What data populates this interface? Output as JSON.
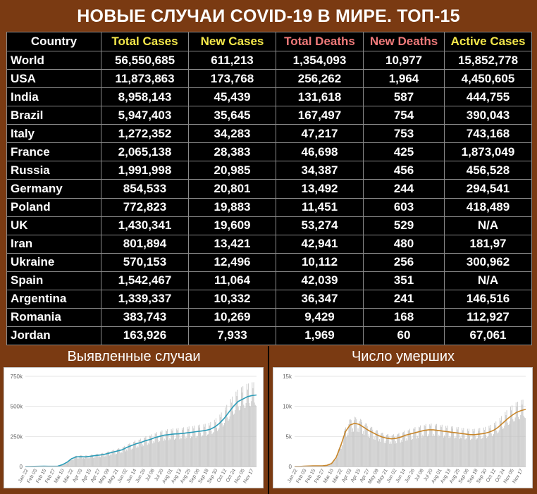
{
  "title": "НОВЫЕ СЛУЧАИ COVID-19 В МИРЕ. ТОП-15",
  "table": {
    "headers": [
      "Country",
      "Total Cases",
      "New Cases",
      "Total Deaths",
      "New Deaths",
      "Active Cases"
    ],
    "header_colors": [
      "#ffffff",
      "#f5e84a",
      "#f5e84a",
      "#f07a7a",
      "#f07a7a",
      "#f5e84a"
    ],
    "rows": [
      [
        "World",
        "56,550,685",
        "611,213",
        "1,354,093",
        "10,977",
        "15,852,778"
      ],
      [
        "USA",
        "11,873,863",
        "173,768",
        "256,262",
        "1,964",
        "4,450,605"
      ],
      [
        "India",
        "8,958,143",
        "45,439",
        "131,618",
        "587",
        "444,755"
      ],
      [
        "Brazil",
        "5,947,403",
        "35,645",
        "167,497",
        "754",
        "390,043"
      ],
      [
        "Italy",
        "1,272,352",
        "34,283",
        "47,217",
        "753",
        "743,168"
      ],
      [
        "France",
        "2,065,138",
        "28,383",
        "46,698",
        "425",
        "1,873,049"
      ],
      [
        "Russia",
        "1,991,998",
        "20,985",
        "34,387",
        "456",
        "456,528"
      ],
      [
        "Germany",
        "854,533",
        "20,801",
        "13,492",
        "244",
        "294,541"
      ],
      [
        "Poland",
        "772,823",
        "19,883",
        "11,451",
        "603",
        "418,489"
      ],
      [
        "UK",
        "1,430,341",
        "19,609",
        "53,274",
        "529",
        "N/A"
      ],
      [
        "Iran",
        "801,894",
        "13,421",
        "42,941",
        "480",
        "181,97"
      ],
      [
        "Ukraine",
        "570,153",
        "12,496",
        "10,112",
        "256",
        "300,962"
      ],
      [
        "Spain",
        "1,542,467",
        "11,064",
        "42,039",
        "351",
        "N/A"
      ],
      [
        "Argentina",
        "1,339,337",
        "10,332",
        "36,347",
        "241",
        "146,516"
      ],
      [
        "Romania",
        "383,743",
        "10,269",
        "9,429",
        "168",
        "112,927"
      ],
      [
        "Jordan",
        "163,926",
        "7,933",
        "1,969",
        "60",
        "67,061"
      ]
    ]
  },
  "sections": {
    "cases_label": "Выявленные случаи",
    "deaths_label": "Число умерших"
  },
  "chart_data": [
    {
      "type": "bar",
      "title": "",
      "xlabel": "",
      "ylabel": "",
      "ylim": [
        0,
        750000
      ],
      "yticks": [
        "0",
        "250k",
        "500k",
        "750k"
      ],
      "ytick_values": [
        0,
        250000,
        500000,
        750000
      ],
      "x_tick_labels": [
        "Jan 22",
        "Feb 03",
        "Feb 15",
        "Feb 27",
        "Mar 10",
        "Mar 22",
        "Apr 03",
        "Apr 15",
        "Apr 27",
        "May 09",
        "May 21",
        "Jun 02",
        "Jun 14",
        "Jun 26",
        "Jul 08",
        "Jul 20",
        "Aug 01",
        "Aug 13",
        "Aug 25",
        "Sep 06",
        "Sep 18",
        "Sep 30",
        "Oct 12",
        "Oct 24",
        "Nov 05",
        "Nov 17"
      ],
      "bar_color": "#c4c4c4",
      "line_color": "#2b9cb8",
      "series": [
        {
          "values": [
            0,
            0,
            1000,
            2000,
            3000,
            2000,
            2000,
            3000,
            15000,
            35000,
            65000,
            80000,
            82000,
            80000,
            85000,
            90000,
            95000,
            100000,
            110000,
            120000,
            130000,
            140000,
            160000,
            175000,
            190000,
            200000,
            215000,
            225000,
            240000,
            250000,
            260000,
            265000,
            270000,
            272000,
            275000,
            280000,
            285000,
            290000,
            295000,
            300000,
            310000,
            330000,
            360000,
            400000,
            450000,
            500000,
            540000,
            560000,
            580000,
            590000,
            595000
          ]
        }
      ]
    },
    {
      "type": "bar",
      "title": "",
      "xlabel": "",
      "ylabel": "",
      "ylim": [
        0,
        15000
      ],
      "yticks": [
        "0",
        "5k",
        "10k",
        "15k"
      ],
      "ytick_values": [
        0,
        5000,
        10000,
        15000
      ],
      "x_tick_labels": [
        "Jan 22",
        "Feb 03",
        "Feb 15",
        "Feb 27",
        "Mar 10",
        "Mar 22",
        "Apr 03",
        "Apr 15",
        "Apr 27",
        "May 09",
        "May 21",
        "Jun 02",
        "Jun 14",
        "Jun 26",
        "Jul 08",
        "Jul 20",
        "Aug 01",
        "Aug 13",
        "Aug 25",
        "Sep 06",
        "Sep 18",
        "Sep 30",
        "Oct 12",
        "Oct 24",
        "Nov 05",
        "Nov 17"
      ],
      "bar_color": "#c4c4c4",
      "line_color": "#c8862a",
      "series": [
        {
          "values": [
            0,
            0,
            50,
            80,
            100,
            100,
            100,
            200,
            500,
            1500,
            3500,
            5800,
            6900,
            7200,
            7000,
            6500,
            6000,
            5600,
            5200,
            4900,
            4700,
            4600,
            4700,
            4900,
            5200,
            5400,
            5600,
            5800,
            6000,
            6100,
            6100,
            6000,
            5900,
            5800,
            5700,
            5600,
            5500,
            5400,
            5300,
            5300,
            5400,
            5500,
            5700,
            6000,
            6500,
            7200,
            7900,
            8500,
            9000,
            9300,
            9500
          ]
        }
      ]
    }
  ]
}
